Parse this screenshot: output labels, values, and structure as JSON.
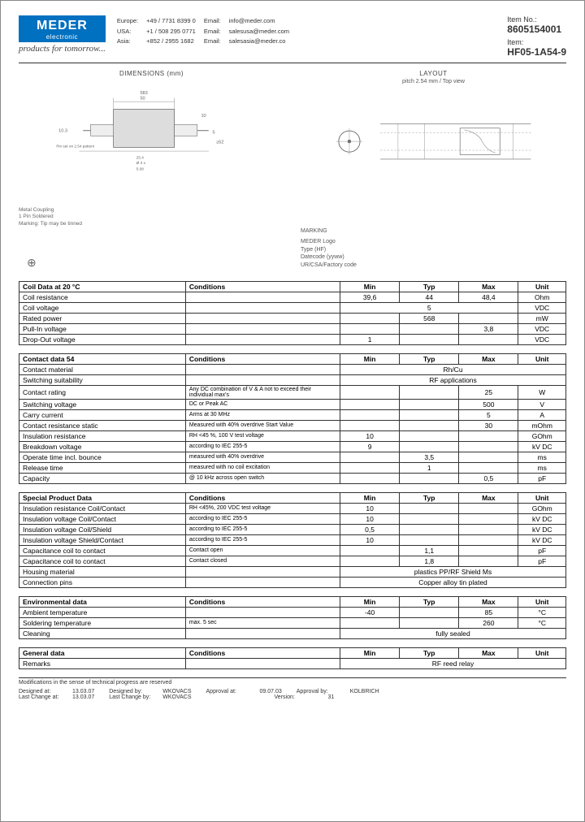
{
  "header": {
    "logo_main": "MEDER",
    "logo_sub": "electronic",
    "tagline": "products for tomorrow...",
    "contacts": [
      {
        "region": "Europe:",
        "phone": "+49 / 7731 8399 0",
        "email_label": "Email:",
        "email": "info@meder.com"
      },
      {
        "region": "USA:",
        "phone": "+1 / 508 295 0771",
        "email_label": "Email:",
        "email": "salesusa@meder.com"
      },
      {
        "region": "Asia:",
        "phone": "+852 / 2955 1682",
        "email_label": "Email:",
        "email": "salesasia@meder.co"
      }
    ],
    "item_no_label": "Item No.:",
    "item_no": "8605154001",
    "item_label": "Item:",
    "item": "HF05-1A54-9"
  },
  "diag_left": {
    "title": "DIMENSIONS (mm)",
    "notes_1": "Metal Coupling",
    "notes_2": "1 Pin Soldered",
    "notes_3": "Marking: Tip may be tinned"
  },
  "diag_right": {
    "title": "LAYOUT",
    "sub": "pitch 2.54 mm / Top view",
    "marking_title": "MARKING",
    "marking_1": "MEDER Logo",
    "marking_2": "Type (HF)",
    "marking_3": "Datecode (yyww)",
    "marking_4": "UR/CSA/Factory code"
  },
  "tables": [
    {
      "header": [
        "Coil Data at 20 °C",
        "Conditions",
        "Min",
        "Typ",
        "Max",
        "Unit"
      ],
      "rows": [
        {
          "p": "Coil resistance",
          "c": "",
          "min": "39,6",
          "typ": "44",
          "max": "48,4",
          "unit": "Ohm"
        },
        {
          "p": "Coil voltage",
          "c": "",
          "span": "5",
          "unit": "VDC"
        },
        {
          "p": "Rated power",
          "c": "",
          "min": "",
          "typ": "568",
          "max": "",
          "unit": "mW"
        },
        {
          "p": "Pull-In voltage",
          "c": "",
          "min": "",
          "typ": "",
          "max": "3,8",
          "unit": "VDC"
        },
        {
          "p": "Drop-Out voltage",
          "c": "",
          "min": "1",
          "typ": "",
          "max": "",
          "unit": "VDC"
        }
      ]
    },
    {
      "header": [
        "Contact data  54",
        "Conditions",
        "Min",
        "Typ",
        "Max",
        "Unit"
      ],
      "rows": [
        {
          "p": "Contact material",
          "c": "",
          "span": "Rh/Cu",
          "unit": ""
        },
        {
          "p": "Switching suitability",
          "c": "",
          "span": "RF applications",
          "unit": ""
        },
        {
          "p": "Contact rating",
          "c": "Any DC combination of V & A not to exceed their individual max's",
          "min": "",
          "typ": "",
          "max": "25",
          "unit": "W"
        },
        {
          "p": "Switching voltage",
          "c": "DC or Peak AC",
          "min": "",
          "typ": "",
          "max": "500",
          "unit": "V"
        },
        {
          "p": "Carry current",
          "c": "Arms at 30 MHz",
          "min": "",
          "typ": "",
          "max": "5",
          "unit": "A"
        },
        {
          "p": "Contact resistance static",
          "c": "Measured with 40% overdrive Start Value",
          "min": "",
          "typ": "",
          "max": "30",
          "unit": "mOhm"
        },
        {
          "p": "Insulation resistance",
          "c": "RH <45 %, 100 V test voltage",
          "min": "10",
          "typ": "",
          "max": "",
          "unit": "GOhm"
        },
        {
          "p": "Breakdown voltage",
          "c": "according to IEC 255-5",
          "min": "9",
          "typ": "",
          "max": "",
          "unit": "kV DC"
        },
        {
          "p": "Operate time incl. bounce",
          "c": "measured with 40% overdrive",
          "min": "",
          "typ": "3,5",
          "max": "",
          "unit": "ms"
        },
        {
          "p": "Release time",
          "c": "measured with no coil excitation",
          "min": "",
          "typ": "1",
          "max": "",
          "unit": "ms"
        },
        {
          "p": "Capacity",
          "c": "@ 10 kHz across open switch",
          "min": "",
          "typ": "",
          "max": "0,5",
          "unit": "pF"
        }
      ]
    },
    {
      "header": [
        "Special Product Data",
        "Conditions",
        "Min",
        "Typ",
        "Max",
        "Unit"
      ],
      "rows": [
        {
          "p": "Insulation resistance Coil/Contact",
          "c": "RH <45%, 200 VDC test voltage",
          "min": "10",
          "typ": "",
          "max": "",
          "unit": "GOhm"
        },
        {
          "p": "Insulation voltage Coil/Contact",
          "c": "according to IEC 255-5",
          "min": "10",
          "typ": "",
          "max": "",
          "unit": "kV DC"
        },
        {
          "p": "Insulation voltage Coil/Shield",
          "c": "according to IEC 255-5",
          "min": "0,5",
          "typ": "",
          "max": "",
          "unit": "kV DC"
        },
        {
          "p": "Insulation voltage Shield/Contact",
          "c": "according to IEC 255-5",
          "min": "10",
          "typ": "",
          "max": "",
          "unit": "kV DC"
        },
        {
          "p": "Capacitance coil to contact",
          "c": "Contact open",
          "min": "",
          "typ": "1,1",
          "max": "",
          "unit": "pF"
        },
        {
          "p": "Capacitance coil to contact",
          "c": "Contact closed",
          "min": "",
          "typ": "1,8",
          "max": "",
          "unit": "pF"
        },
        {
          "p": "Housing material",
          "c": "",
          "span": "plastics PP/RF Shield Ms",
          "unit": ""
        },
        {
          "p": "Connection pins",
          "c": "",
          "span": "Copper alloy tin plated",
          "unit": ""
        }
      ]
    },
    {
      "header": [
        "Environmental data",
        "Conditions",
        "Min",
        "Typ",
        "Max",
        "Unit"
      ],
      "rows": [
        {
          "p": "Ambient temperature",
          "c": "",
          "min": "-40",
          "typ": "",
          "max": "85",
          "unit": "°C"
        },
        {
          "p": "Soldering temperature",
          "c": "max. 5 sec",
          "min": "",
          "typ": "",
          "max": "260",
          "unit": "°C"
        },
        {
          "p": "Cleaning",
          "c": "",
          "span": "fully sealed",
          "unit": ""
        }
      ]
    },
    {
      "header": [
        "General data",
        "Conditions",
        "Min",
        "Typ",
        "Max",
        "Unit"
      ],
      "rows": [
        {
          "p": "Remarks",
          "c": "",
          "span": "RF reed relay",
          "unit": ""
        }
      ]
    }
  ],
  "footer": {
    "note": "Modifications in the sense of technical progress are reserved",
    "rows": [
      [
        {
          "l": "Designed at:",
          "v": "13.03.07"
        },
        {
          "l": "Designed by:",
          "v": "WKOVACS"
        },
        {
          "l": "Approval at:",
          "v": "09.07.03"
        },
        {
          "l": "Approval by:",
          "v": "KOLBRICH"
        }
      ],
      [
        {
          "l": "Last Change at:",
          "v": "13.03.07"
        },
        {
          "l": "Last Change by:",
          "v": "WKOVACS"
        },
        {
          "l": "",
          "v": ""
        },
        {
          "l": "Version:",
          "v": "31"
        }
      ]
    ]
  }
}
